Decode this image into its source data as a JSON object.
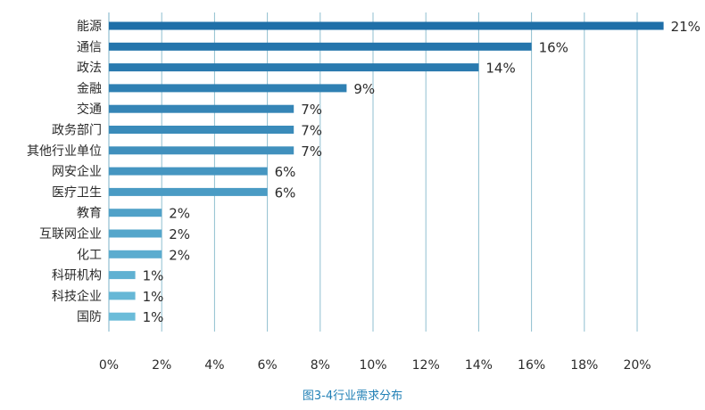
{
  "chart_data": {
    "type": "bar",
    "orientation": "horizontal",
    "categories": [
      "能源",
      "通信",
      "政法",
      "金融",
      "交通",
      "政务部门",
      "其他行业单位",
      "网安企业",
      "医疗卫生",
      "教育",
      "互联网企业",
      "化工",
      "科研机构",
      "科技企业",
      "国防"
    ],
    "values": [
      21,
      16,
      14,
      9,
      7,
      7,
      7,
      6,
      6,
      2,
      2,
      2,
      1,
      1,
      1
    ],
    "value_labels": [
      "21%",
      "16%",
      "14%",
      "9%",
      "7%",
      "7%",
      "7%",
      "6%",
      "6%",
      "2%",
      "2%",
      "2%",
      "1%",
      "1%",
      "1%"
    ],
    "xticks": [
      "0%",
      "2%",
      "4%",
      "6%",
      "8%",
      "10%",
      "12%",
      "14%",
      "16%",
      "18%",
      "20%"
    ],
    "xlim": [
      0,
      20.5
    ],
    "grid": "vertical",
    "legend": "none",
    "caption": "图3-4行业需求分布",
    "colors": {
      "gradient_top": "#1f6fa8",
      "gradient_bottom": "#6bbcd9",
      "grid": "#8fbfd0",
      "caption": "#1f7fb5",
      "text": "#2b2b2b"
    }
  }
}
